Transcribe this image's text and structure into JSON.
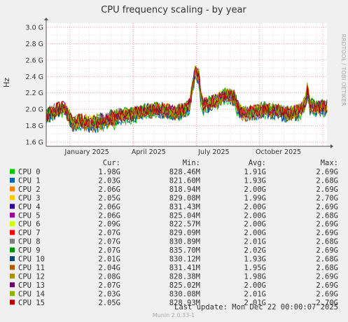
{
  "chart_data": {
    "type": "line",
    "title": "CPU frequency scaling - by year",
    "ylabel": "Hz",
    "side_label": "RRDTOOL / TOBI OETIKER",
    "ylim": [
      1.55,
      3.05
    ],
    "y_ticks": [
      {
        "value": 1.6,
        "label": "1.6 G"
      },
      {
        "value": 1.8,
        "label": "1.8 G"
      },
      {
        "value": 2.0,
        "label": "2.0 G"
      },
      {
        "value": 2.2,
        "label": "2.2 G"
      },
      {
        "value": 2.4,
        "label": "2.4 G"
      },
      {
        "value": 2.6,
        "label": "2.6 G"
      },
      {
        "value": 2.8,
        "label": "2.8 G"
      },
      {
        "value": 3.0,
        "label": "3.0 G"
      }
    ],
    "x_ticks": [
      "January 2025",
      "April 2025",
      "July 2025",
      "October 2025"
    ],
    "grid": true,
    "profile": [
      {
        "x": 0.0,
        "y": 1.92
      },
      {
        "x": 0.02,
        "y": 1.96
      },
      {
        "x": 0.04,
        "y": 2.0
      },
      {
        "x": 0.06,
        "y": 2.02
      },
      {
        "x": 0.075,
        "y": 1.97
      },
      {
        "x": 0.09,
        "y": 1.85
      },
      {
        "x": 0.12,
        "y": 1.88
      },
      {
        "x": 0.16,
        "y": 1.86
      },
      {
        "x": 0.2,
        "y": 1.88
      },
      {
        "x": 0.24,
        "y": 1.92
      },
      {
        "x": 0.28,
        "y": 1.93
      },
      {
        "x": 0.32,
        "y": 1.95
      },
      {
        "x": 0.36,
        "y": 1.98
      },
      {
        "x": 0.4,
        "y": 2.0
      },
      {
        "x": 0.43,
        "y": 1.99
      },
      {
        "x": 0.46,
        "y": 1.97
      },
      {
        "x": 0.49,
        "y": 1.99
      },
      {
        "x": 0.51,
        "y": 2.05
      },
      {
        "x": 0.515,
        "y": 2.15
      },
      {
        "x": 0.525,
        "y": 2.35
      },
      {
        "x": 0.53,
        "y": 2.45
      },
      {
        "x": 0.545,
        "y": 2.4
      },
      {
        "x": 0.55,
        "y": 2.15
      },
      {
        "x": 0.56,
        "y": 2.05
      },
      {
        "x": 0.6,
        "y": 2.1
      },
      {
        "x": 0.64,
        "y": 2.18
      },
      {
        "x": 0.67,
        "y": 2.15
      },
      {
        "x": 0.68,
        "y": 2.05
      },
      {
        "x": 0.7,
        "y": 1.95
      },
      {
        "x": 0.74,
        "y": 1.97
      },
      {
        "x": 0.78,
        "y": 2.0
      },
      {
        "x": 0.82,
        "y": 1.98
      },
      {
        "x": 0.86,
        "y": 1.95
      },
      {
        "x": 0.89,
        "y": 1.97
      },
      {
        "x": 0.91,
        "y": 2.0
      },
      {
        "x": 0.925,
        "y": 2.12
      },
      {
        "x": 0.93,
        "y": 2.25
      },
      {
        "x": 0.94,
        "y": 2.05
      },
      {
        "x": 0.96,
        "y": 2.02
      },
      {
        "x": 1.0,
        "y": 2.03
      }
    ],
    "columns": [
      "",
      "Cur:",
      "Min:",
      "Avg:",
      "Max:"
    ],
    "series": [
      {
        "name": "CPU 0",
        "color": "#00cc00",
        "cur": "1.98G",
        "min": "828.46M",
        "avg": "1.91G",
        "max": "2.69G"
      },
      {
        "name": "CPU 1",
        "color": "#0066b3",
        "cur": "2.03G",
        "min": "821.60M",
        "avg": "1.93G",
        "max": "2.68G"
      },
      {
        "name": "CPU 2",
        "color": "#ff8000",
        "cur": "2.06G",
        "min": "818.94M",
        "avg": "2.00G",
        "max": "2.69G"
      },
      {
        "name": "CPU 3",
        "color": "#ffcc00",
        "cur": "2.05G",
        "min": "829.08M",
        "avg": "1.99G",
        "max": "2.70G"
      },
      {
        "name": "CPU 4",
        "color": "#330099",
        "cur": "2.06G",
        "min": "831.43M",
        "avg": "2.00G",
        "max": "2.69G"
      },
      {
        "name": "CPU 5",
        "color": "#990099",
        "cur": "2.06G",
        "min": "825.04M",
        "avg": "2.00G",
        "max": "2.68G"
      },
      {
        "name": "CPU 6",
        "color": "#ccff00",
        "cur": "2.09G",
        "min": "822.57M",
        "avg": "2.00G",
        "max": "2.69G"
      },
      {
        "name": "CPU 7",
        "color": "#ff0000",
        "cur": "2.07G",
        "min": "829.09M",
        "avg": "2.00G",
        "max": "2.69G"
      },
      {
        "name": "CPU 8",
        "color": "#808080",
        "cur": "2.07G",
        "min": "830.89M",
        "avg": "2.01G",
        "max": "2.68G"
      },
      {
        "name": "CPU 9",
        "color": "#008f00",
        "cur": "2.07G",
        "min": "835.70M",
        "avg": "2.02G",
        "max": "2.69G"
      },
      {
        "name": "CPU 10",
        "color": "#00487d",
        "cur": "2.01G",
        "min": "830.12M",
        "avg": "1.93G",
        "max": "2.68G"
      },
      {
        "name": "CPU 11",
        "color": "#b35a00",
        "cur": "2.04G",
        "min": "831.41M",
        "avg": "1.95G",
        "max": "2.68G"
      },
      {
        "name": "CPU 12",
        "color": "#b38f00",
        "cur": "2.08G",
        "min": "828.38M",
        "avg": "1.98G",
        "max": "2.69G"
      },
      {
        "name": "CPU 13",
        "color": "#6b006b",
        "cur": "2.07G",
        "min": "825.02M",
        "avg": "2.00G",
        "max": "2.69G"
      },
      {
        "name": "CPU 14",
        "color": "#8fb300",
        "cur": "2.03G",
        "min": "830.08M",
        "avg": "2.01G",
        "max": "2.69G"
      },
      {
        "name": "CPU 15",
        "color": "#b30000",
        "cur": "2.05G",
        "min": "828.93M",
        "avg": "2.01G",
        "max": "2.70G"
      }
    ],
    "last_update": "Last update:  Mon Dec 22 00:00:07 2025",
    "footer": "Munin 2.0.33-1"
  }
}
